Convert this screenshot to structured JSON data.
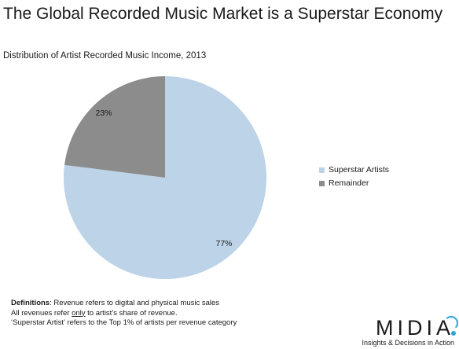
{
  "title": "The Global Recorded Music Market is a Superstar Economy",
  "subtitle": "Distribution of Artist Recorded Music Income, 2013",
  "chart_data": {
    "type": "pie",
    "title": "The Global Recorded Music Market is a Superstar Economy",
    "subtitle": "Distribution of Artist Recorded Music Income, 2013",
    "categories": [
      "Superstar Artists",
      "Remainder"
    ],
    "values": [
      77,
      23
    ],
    "value_labels": [
      "77%",
      "23%"
    ],
    "colors": [
      "#bcd3e8",
      "#8c8c8c"
    ],
    "legend": "right"
  },
  "notes": {
    "definitions_label": "Definitions",
    "line1_rest": ": Revenue refers to digital and physical music sales",
    "line2_pre": "All revenues refer ",
    "line2_underlined": "only",
    "line2_post": " to artist’s share of revenue.",
    "line3": "‘Superstar Artist’ refers to the Top 1% of artists per revenue category"
  },
  "logo": {
    "text": "MIDIA",
    "tagline": "Insights & Decisions in Action",
    "accent_color": "#2aa6d8"
  }
}
